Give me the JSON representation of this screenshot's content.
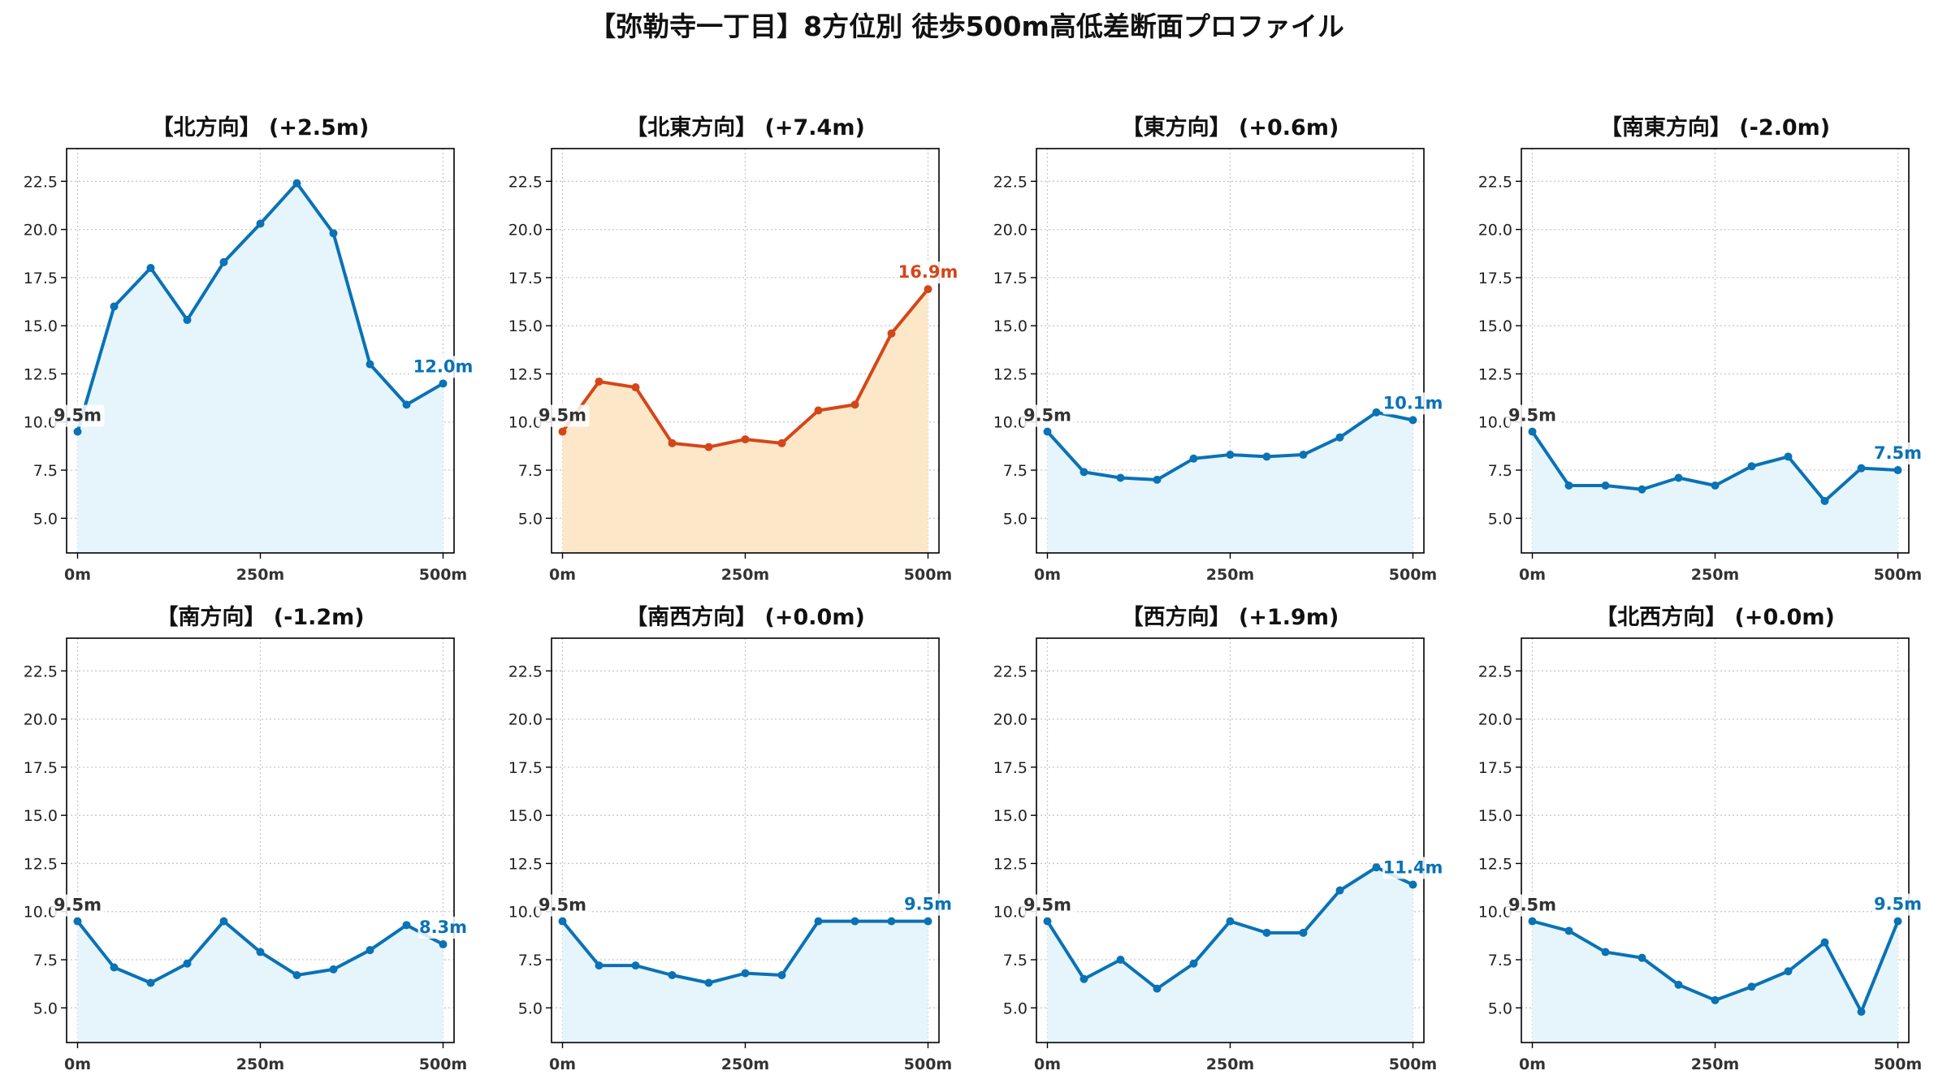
{
  "title": "【弥勒寺一丁目】8方位別 徒歩500m高低差断面プロファイル",
  "colors": {
    "normal_line": "#0a72b5",
    "normal_fill": "#e6f5fc",
    "highlight_line": "#d4461a",
    "highlight_fill": "#fde7c9",
    "start_label": "#333333"
  },
  "chart_data": [
    {
      "type": "area",
      "title": "【北方向】 (+2.5m)",
      "x": [
        0,
        50,
        100,
        150,
        200,
        250,
        300,
        350,
        400,
        450,
        500
      ],
      "values": [
        9.5,
        16.0,
        18.0,
        15.3,
        18.3,
        20.3,
        22.4,
        19.8,
        13.0,
        10.9,
        12.0
      ],
      "start_label": "9.5m",
      "end_label": "12.0m",
      "highlight": false,
      "xticks": [
        0,
        250,
        500
      ],
      "xtick_labels": [
        "0m",
        "250m",
        "500m"
      ],
      "yticks": [
        5.0,
        7.5,
        10.0,
        12.5,
        15.0,
        17.5,
        20.0,
        22.5
      ],
      "ytick_labels": [
        "5.0",
        "7.5",
        "10.0",
        "12.5",
        "15.0",
        "17.5",
        "20.0",
        "22.5"
      ],
      "ylim": [
        3.2,
        24.2
      ],
      "xlim": [
        -15,
        515
      ],
      "grid": true
    },
    {
      "type": "area",
      "title": "【北東方向】 (+7.4m)",
      "x": [
        0,
        50,
        100,
        150,
        200,
        250,
        300,
        350,
        400,
        450,
        500
      ],
      "values": [
        9.5,
        12.1,
        11.8,
        8.9,
        8.7,
        9.1,
        8.9,
        10.6,
        10.9,
        14.6,
        16.9
      ],
      "start_label": "9.5m",
      "end_label": "16.9m",
      "highlight": true,
      "xticks": [
        0,
        250,
        500
      ],
      "xtick_labels": [
        "0m",
        "250m",
        "500m"
      ],
      "yticks": [
        5.0,
        7.5,
        10.0,
        12.5,
        15.0,
        17.5,
        20.0,
        22.5
      ],
      "ytick_labels": [
        "5.0",
        "7.5",
        "10.0",
        "12.5",
        "15.0",
        "17.5",
        "20.0",
        "22.5"
      ],
      "ylim": [
        3.2,
        24.2
      ],
      "xlim": [
        -15,
        515
      ],
      "grid": true
    },
    {
      "type": "area",
      "title": "【東方向】 (+0.6m)",
      "x": [
        0,
        50,
        100,
        150,
        200,
        250,
        300,
        350,
        400,
        450,
        500
      ],
      "values": [
        9.5,
        7.4,
        7.1,
        7.0,
        8.1,
        8.3,
        8.2,
        8.3,
        9.2,
        10.5,
        10.1
      ],
      "start_label": "9.5m",
      "end_label": "10.1m",
      "highlight": false,
      "xticks": [
        0,
        250,
        500
      ],
      "xtick_labels": [
        "0m",
        "250m",
        "500m"
      ],
      "yticks": [
        5.0,
        7.5,
        10.0,
        12.5,
        15.0,
        17.5,
        20.0,
        22.5
      ],
      "ytick_labels": [
        "5.0",
        "7.5",
        "10.0",
        "12.5",
        "15.0",
        "17.5",
        "20.0",
        "22.5"
      ],
      "ylim": [
        3.2,
        24.2
      ],
      "xlim": [
        -15,
        515
      ],
      "grid": true
    },
    {
      "type": "area",
      "title": "【南東方向】 (-2.0m)",
      "x": [
        0,
        50,
        100,
        150,
        200,
        250,
        300,
        350,
        400,
        450,
        500
      ],
      "values": [
        9.5,
        6.7,
        6.7,
        6.5,
        7.1,
        6.7,
        7.7,
        8.2,
        5.9,
        7.6,
        7.5
      ],
      "start_label": "9.5m",
      "end_label": "7.5m",
      "highlight": false,
      "xticks": [
        0,
        250,
        500
      ],
      "xtick_labels": [
        "0m",
        "250m",
        "500m"
      ],
      "yticks": [
        5.0,
        7.5,
        10.0,
        12.5,
        15.0,
        17.5,
        20.0,
        22.5
      ],
      "ytick_labels": [
        "5.0",
        "7.5",
        "10.0",
        "12.5",
        "15.0",
        "17.5",
        "20.0",
        "22.5"
      ],
      "ylim": [
        3.2,
        24.2
      ],
      "xlim": [
        -15,
        515
      ],
      "grid": true
    },
    {
      "type": "area",
      "title": "【南方向】 (-1.2m)",
      "x": [
        0,
        50,
        100,
        150,
        200,
        250,
        300,
        350,
        400,
        450,
        500
      ],
      "values": [
        9.5,
        7.1,
        6.3,
        7.3,
        9.5,
        7.9,
        6.7,
        7.0,
        8.0,
        9.3,
        8.3
      ],
      "start_label": "9.5m",
      "end_label": "8.3m",
      "highlight": false,
      "xticks": [
        0,
        250,
        500
      ],
      "xtick_labels": [
        "0m",
        "250m",
        "500m"
      ],
      "yticks": [
        5.0,
        7.5,
        10.0,
        12.5,
        15.0,
        17.5,
        20.0,
        22.5
      ],
      "ytick_labels": [
        "5.0",
        "7.5",
        "10.0",
        "12.5",
        "15.0",
        "17.5",
        "20.0",
        "22.5"
      ],
      "ylim": [
        3.2,
        24.2
      ],
      "xlim": [
        -15,
        515
      ],
      "grid": true
    },
    {
      "type": "area",
      "title": "【南西方向】 (+0.0m)",
      "x": [
        0,
        50,
        100,
        150,
        200,
        250,
        300,
        350,
        400,
        450,
        500
      ],
      "values": [
        9.5,
        7.2,
        7.2,
        6.7,
        6.3,
        6.8,
        6.7,
        9.5,
        9.5,
        9.5,
        9.5
      ],
      "start_label": "9.5m",
      "end_label": "9.5m",
      "highlight": false,
      "xticks": [
        0,
        250,
        500
      ],
      "xtick_labels": [
        "0m",
        "250m",
        "500m"
      ],
      "yticks": [
        5.0,
        7.5,
        10.0,
        12.5,
        15.0,
        17.5,
        20.0,
        22.5
      ],
      "ytick_labels": [
        "5.0",
        "7.5",
        "10.0",
        "12.5",
        "15.0",
        "17.5",
        "20.0",
        "22.5"
      ],
      "ylim": [
        3.2,
        24.2
      ],
      "xlim": [
        -15,
        515
      ],
      "grid": true
    },
    {
      "type": "area",
      "title": "【西方向】 (+1.9m)",
      "x": [
        0,
        50,
        100,
        150,
        200,
        250,
        300,
        350,
        400,
        450,
        500
      ],
      "values": [
        9.5,
        6.5,
        7.5,
        6.0,
        7.3,
        9.5,
        8.9,
        8.9,
        11.1,
        12.3,
        11.4
      ],
      "start_label": "9.5m",
      "end_label": "11.4m",
      "highlight": false,
      "xticks": [
        0,
        250,
        500
      ],
      "xtick_labels": [
        "0m",
        "250m",
        "500m"
      ],
      "yticks": [
        5.0,
        7.5,
        10.0,
        12.5,
        15.0,
        17.5,
        20.0,
        22.5
      ],
      "ytick_labels": [
        "5.0",
        "7.5",
        "10.0",
        "12.5",
        "15.0",
        "17.5",
        "20.0",
        "22.5"
      ],
      "ylim": [
        3.2,
        24.2
      ],
      "xlim": [
        -15,
        515
      ],
      "grid": true
    },
    {
      "type": "area",
      "title": "【北西方向】 (+0.0m)",
      "x": [
        0,
        50,
        100,
        150,
        200,
        250,
        300,
        350,
        400,
        450,
        500
      ],
      "values": [
        9.5,
        9.0,
        7.9,
        7.6,
        6.2,
        5.4,
        6.1,
        6.9,
        8.4,
        4.8,
        9.5
      ],
      "start_label": "9.5m",
      "end_label": "9.5m",
      "highlight": false,
      "xticks": [
        0,
        250,
        500
      ],
      "xtick_labels": [
        "0m",
        "250m",
        "500m"
      ],
      "yticks": [
        5.0,
        7.5,
        10.0,
        12.5,
        15.0,
        17.5,
        20.0,
        22.5
      ],
      "ytick_labels": [
        "5.0",
        "7.5",
        "10.0",
        "12.5",
        "15.0",
        "17.5",
        "20.0",
        "22.5"
      ],
      "ylim": [
        3.2,
        24.2
      ],
      "xlim": [
        -15,
        515
      ],
      "grid": true
    }
  ]
}
